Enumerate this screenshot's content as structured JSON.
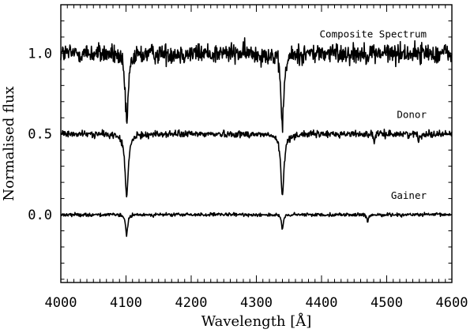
{
  "chart_data": {
    "type": "line",
    "xlabel": "Wavelength [Å]",
    "ylabel": "Normalised flux",
    "xlim": [
      4000,
      4600
    ],
    "ylim": [
      -0.42,
      1.3
    ],
    "x_ticks": [
      4000,
      4100,
      4200,
      4300,
      4400,
      4500,
      4600
    ],
    "x_tick_labels": [
      "4000",
      "4100",
      "4200",
      "4300",
      "4400",
      "4500",
      "4600"
    ],
    "y_ticks": [
      0.0,
      0.5,
      1.0
    ],
    "y_tick_labels": [
      "0.0",
      "0.5",
      "1.0"
    ],
    "grid": false,
    "legend": "none",
    "series": [
      {
        "name": "Composite Spectrum",
        "baseline": 1.0,
        "noise_amplitude": 0.06,
        "lines": [
          {
            "center": 4101,
            "depth": 0.43,
            "width": 3.0
          },
          {
            "center": 4340,
            "depth": 0.43,
            "width": 3.0
          }
        ]
      },
      {
        "name": "Donor",
        "baseline": 0.5,
        "noise_amplitude": 0.02,
        "lines": [
          {
            "center": 4101,
            "depth": 0.39,
            "width": 3.0
          },
          {
            "center": 4340,
            "depth": 0.38,
            "width": 3.0
          },
          {
            "center": 4481,
            "depth": 0.06,
            "width": 1.0
          },
          {
            "center": 4549,
            "depth": 0.05,
            "width": 1.0
          }
        ]
      },
      {
        "name": "Gainer",
        "baseline": 0.0,
        "noise_amplitude": 0.01,
        "lines": [
          {
            "center": 4101,
            "depth": 0.13,
            "width": 1.8
          },
          {
            "center": 4340,
            "depth": 0.09,
            "width": 1.8
          },
          {
            "center": 4471,
            "depth": 0.05,
            "width": 1.5
          }
        ]
      }
    ]
  }
}
